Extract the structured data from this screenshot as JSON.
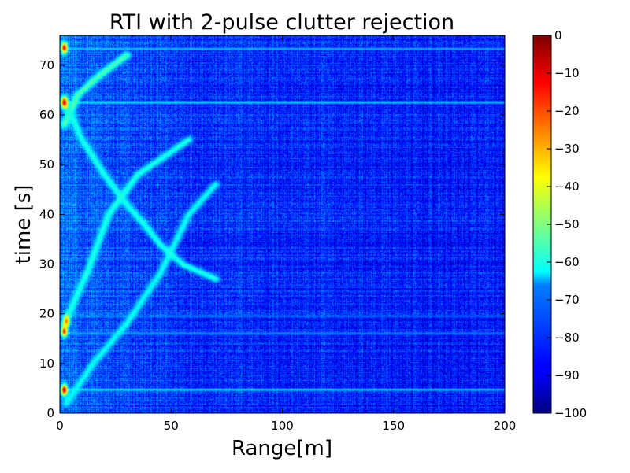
{
  "chart_data": {
    "type": "heatmap",
    "title": "RTI with 2-pulse clutter rejection",
    "xlabel": "Range[m]",
    "ylabel": "time [s]",
    "xlim": [
      0,
      200
    ],
    "ylim": [
      0,
      76
    ],
    "x_ticks": [
      0,
      50,
      100,
      150,
      200
    ],
    "x_tick_labels": [
      "0",
      "50",
      "100",
      "150",
      "200"
    ],
    "y_ticks": [
      0,
      10,
      20,
      30,
      40,
      50,
      60,
      70
    ],
    "y_tick_labels": [
      "0",
      "10",
      "20",
      "30",
      "40",
      "50",
      "60",
      "70"
    ],
    "colorbar": {
      "colormap": "jet",
      "range": [
        -100,
        0
      ],
      "ticks": [
        0,
        -10,
        -20,
        -30,
        -40,
        -50,
        -60,
        -70,
        -80,
        -90,
        -100
      ],
      "tick_labels": [
        "0",
        "−10",
        "−20",
        "−30",
        "−40",
        "−50",
        "−60",
        "−70",
        "−80",
        "−90",
        "−100"
      ]
    },
    "background_level_db": -82,
    "horizontal_bands": [
      {
        "time": 4.7,
        "level_db": -62
      },
      {
        "time": 16.0,
        "level_db": -72
      },
      {
        "time": 19.5,
        "level_db": -76
      },
      {
        "time": 62.5,
        "level_db": -65
      },
      {
        "time": 73.3,
        "level_db": -66
      }
    ],
    "target_tracks": [
      {
        "points": [
          [
            3,
            2
          ],
          [
            15,
            10
          ],
          [
            30,
            18
          ],
          [
            45,
            28
          ],
          [
            58,
            40
          ],
          [
            70,
            46
          ]
        ],
        "level_db": -62
      },
      {
        "points": [
          [
            2,
            18
          ],
          [
            12,
            28
          ],
          [
            22,
            40
          ],
          [
            35,
            48
          ],
          [
            58,
            55
          ]
        ],
        "level_db": -60
      },
      {
        "points": [
          [
            2,
            58
          ],
          [
            8,
            64
          ],
          [
            18,
            68
          ],
          [
            30,
            72
          ]
        ],
        "level_db": -55
      },
      {
        "points": [
          [
            2,
            63
          ],
          [
            10,
            55
          ],
          [
            20,
            48
          ],
          [
            30,
            42
          ],
          [
            38,
            38
          ],
          [
            45,
            34
          ],
          [
            55,
            30
          ],
          [
            70,
            27
          ]
        ],
        "level_db": -60
      }
    ],
    "near_range_hotspots": [
      {
        "range": 2,
        "time": 4.7,
        "level_db": -8
      },
      {
        "range": 2,
        "time": 16.5,
        "level_db": -15
      },
      {
        "range": 3,
        "time": 18.5,
        "level_db": -25
      },
      {
        "range": 2,
        "time": 62.5,
        "level_db": -10
      },
      {
        "range": 2,
        "time": 73.5,
        "level_db": -12
      }
    ]
  }
}
